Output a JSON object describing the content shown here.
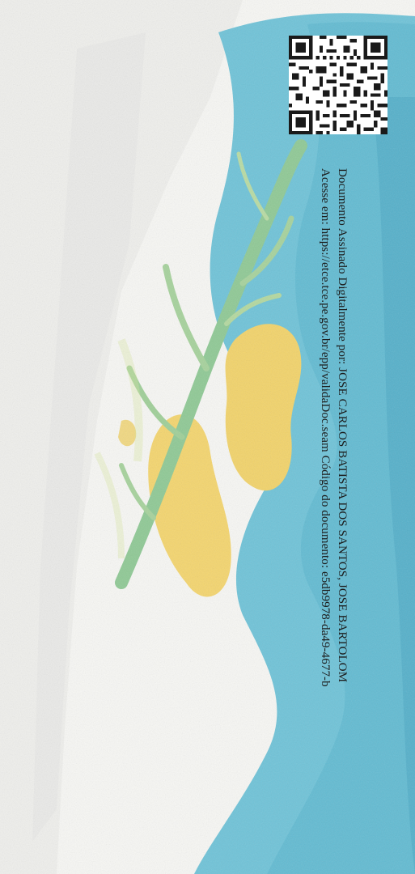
{
  "document": {
    "signature_line": "Documento Assinado Digitalmente por: JOSE CARLOS BATISTA DOS SANTOS, JOSE BARTOLOM",
    "access_line": "Acesse em: https://etce.tce.pe.gov.br/epp/validaDoc.seam Código do documento: e5db9978-da49-4677-b"
  },
  "colors": {
    "paper": "#f7f7f4",
    "sea_blue": "#6fc3d8",
    "leaf_green": "#8fc995",
    "sun_yellow": "#f2d36a"
  },
  "icons": {
    "qr": "qr-code-icon"
  }
}
